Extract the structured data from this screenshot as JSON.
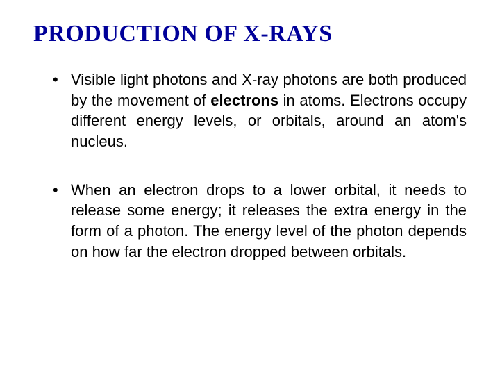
{
  "title": "PRODUCTION OF X-RAYS",
  "title_color": "#000099",
  "title_font": "Times New Roman",
  "title_fontsize": 34,
  "body_fontsize": 22,
  "body_color": "#000000",
  "background_color": "#ffffff",
  "bullets": [
    {
      "segments": [
        {
          "text": "Visible light photons and X-ray photons are both produced by the ",
          "bold": false
        },
        {
          "text": "movement of ",
          "bold": false
        },
        {
          "text": "electrons",
          "bold": true
        },
        {
          "text": " in atoms",
          "bold": false
        },
        {
          "text": ". Electrons occupy different energy levels, or orbitals, around an atom's nucleus.",
          "bold": false
        }
      ]
    },
    {
      "segments": [
        {
          "text": " When an electron drops to a lower orbital, it needs to release some energy; ",
          "bold": false
        },
        {
          "text": "it releases the extra energy in the form of a photon",
          "bold": false
        },
        {
          "text": ". The energy level of the photon depends on how far the electron dropped between orbitals.",
          "bold": false
        }
      ]
    }
  ]
}
